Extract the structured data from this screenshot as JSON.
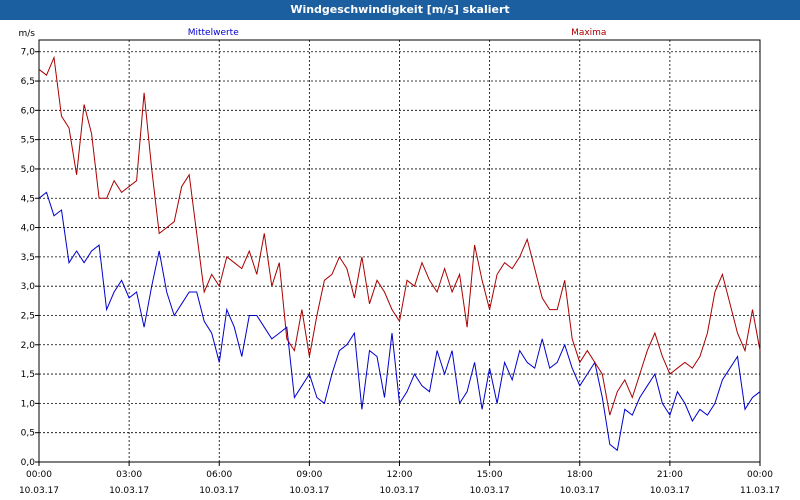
{
  "window": {
    "title": "Windgeschwindigkeit [m/s] skaliert"
  },
  "chart_data": {
    "type": "line",
    "title": "Windgeschwindigkeit [m/s] skaliert",
    "ylabel": "m/s",
    "xlabel": "",
    "ylim": [
      0,
      7.2
    ],
    "xlim_hours": [
      0,
      24
    ],
    "grid": true,
    "yticks": [
      "0,0",
      "0,5",
      "1,0",
      "1,5",
      "2,0",
      "2,5",
      "3,0",
      "3,5",
      "4,0",
      "4,5",
      "5,0",
      "5,5",
      "6,0",
      "6,5",
      "7,0"
    ],
    "xticks": [
      {
        "time": "00:00",
        "date": "10.03.17"
      },
      {
        "time": "03:00",
        "date": "10.03.17"
      },
      {
        "time": "06:00",
        "date": "10.03.17"
      },
      {
        "time": "09:00",
        "date": "10.03.17"
      },
      {
        "time": "12:00",
        "date": "10.03.17"
      },
      {
        "time": "15:00",
        "date": "10.03.17"
      },
      {
        "time": "18:00",
        "date": "10.03.17"
      },
      {
        "time": "21:00",
        "date": "10.03.17"
      },
      {
        "time": "00:00",
        "date": "11.03.17"
      }
    ],
    "series": [
      {
        "name": "Mittelwerte",
        "color": "#0000cc",
        "x": [
          0,
          0.25,
          0.5,
          0.75,
          1,
          1.25,
          1.5,
          1.75,
          2,
          2.25,
          2.5,
          2.75,
          3,
          3.25,
          3.5,
          3.75,
          4,
          4.25,
          4.5,
          4.75,
          5,
          5.25,
          5.5,
          5.75,
          6,
          6.25,
          6.5,
          6.75,
          7,
          7.25,
          7.5,
          7.75,
          8,
          8.25,
          8.5,
          8.75,
          9,
          9.25,
          9.5,
          9.75,
          10,
          10.25,
          10.5,
          10.75,
          11,
          11.25,
          11.5,
          11.75,
          12,
          12.25,
          12.5,
          12.75,
          13,
          13.25,
          13.5,
          13.75,
          14,
          14.25,
          14.5,
          14.75,
          15,
          15.25,
          15.5,
          15.75,
          16,
          16.25,
          16.5,
          16.75,
          17,
          17.25,
          17.5,
          17.75,
          18,
          18.25,
          18.5,
          18.75,
          19,
          19.25,
          19.5,
          19.75,
          20,
          20.25,
          20.5,
          20.75,
          21,
          21.25,
          21.5,
          21.75,
          22,
          22.25,
          22.5,
          22.75,
          23,
          23.25,
          23.5,
          23.75,
          24
        ],
        "y": [
          4.5,
          4.6,
          4.2,
          4.3,
          3.4,
          3.6,
          3.4,
          3.6,
          3.7,
          2.6,
          2.9,
          3.1,
          2.8,
          2.9,
          2.3,
          3.0,
          3.6,
          2.9,
          2.5,
          2.7,
          2.9,
          2.9,
          2.4,
          2.2,
          1.7,
          2.6,
          2.3,
          1.8,
          2.5,
          2.5,
          2.3,
          2.1,
          2.2,
          2.3,
          1.1,
          1.3,
          1.5,
          1.1,
          1.0,
          1.5,
          1.9,
          2.0,
          2.2,
          0.9,
          1.9,
          1.8,
          1.1,
          2.2,
          1.0,
          1.2,
          1.5,
          1.3,
          1.2,
          1.9,
          1.5,
          1.9,
          1.0,
          1.2,
          1.7,
          0.9,
          1.6,
          1.0,
          1.7,
          1.4,
          1.9,
          1.7,
          1.6,
          2.1,
          1.6,
          1.7,
          2.0,
          1.6,
          1.3,
          1.5,
          1.7,
          1.1,
          0.3,
          0.2,
          0.9,
          0.8,
          1.1,
          1.3,
          1.5,
          1.0,
          0.8,
          1.2,
          1.0,
          0.7,
          0.9,
          0.8,
          1.0,
          1.4,
          1.6,
          1.8,
          0.9,
          1.1,
          1.2
        ]
      },
      {
        "name": "Maxima",
        "color": "#aa0000",
        "x": [
          0,
          0.25,
          0.5,
          0.75,
          1,
          1.25,
          1.5,
          1.75,
          2,
          2.25,
          2.5,
          2.75,
          3,
          3.25,
          3.5,
          3.75,
          4,
          4.25,
          4.5,
          4.75,
          5,
          5.25,
          5.5,
          5.75,
          6,
          6.25,
          6.5,
          6.75,
          7,
          7.25,
          7.5,
          7.75,
          8,
          8.25,
          8.5,
          8.75,
          9,
          9.25,
          9.5,
          9.75,
          10,
          10.25,
          10.5,
          10.75,
          11,
          11.25,
          11.5,
          11.75,
          12,
          12.25,
          12.5,
          12.75,
          13,
          13.25,
          13.5,
          13.75,
          14,
          14.25,
          14.5,
          14.75,
          15,
          15.25,
          15.5,
          15.75,
          16,
          16.25,
          16.5,
          16.75,
          17,
          17.25,
          17.5,
          17.75,
          18,
          18.25,
          18.5,
          18.75,
          19,
          19.25,
          19.5,
          19.75,
          20,
          20.25,
          20.5,
          20.75,
          21,
          21.25,
          21.5,
          21.75,
          22,
          22.25,
          22.5,
          22.75,
          23,
          23.25,
          23.5,
          23.75,
          24
        ],
        "y": [
          6.7,
          6.6,
          6.9,
          5.9,
          5.7,
          4.9,
          6.1,
          5.6,
          4.5,
          4.5,
          4.8,
          4.6,
          4.7,
          4.8,
          6.3,
          5.0,
          3.9,
          4.0,
          4.1,
          4.7,
          4.9,
          3.9,
          2.9,
          3.2,
          3.0,
          3.5,
          3.4,
          3.3,
          3.6,
          3.2,
          3.9,
          3.0,
          3.4,
          2.1,
          1.9,
          2.6,
          1.8,
          2.5,
          3.1,
          3.2,
          3.5,
          3.3,
          2.8,
          3.5,
          2.7,
          3.1,
          2.9,
          2.6,
          2.4,
          3.1,
          3.0,
          3.4,
          3.1,
          2.9,
          3.3,
          2.9,
          3.2,
          2.3,
          3.7,
          3.1,
          2.6,
          3.2,
          3.4,
          3.3,
          3.5,
          3.8,
          3.3,
          2.8,
          2.6,
          2.6,
          3.1,
          2.1,
          1.7,
          1.9,
          1.7,
          1.5,
          0.8,
          1.2,
          1.4,
          1.1,
          1.5,
          1.9,
          2.2,
          1.8,
          1.5,
          1.6,
          1.7,
          1.6,
          1.8,
          2.2,
          2.9,
          3.2,
          2.7,
          2.2,
          1.9,
          2.6,
          1.9
        ]
      }
    ]
  }
}
